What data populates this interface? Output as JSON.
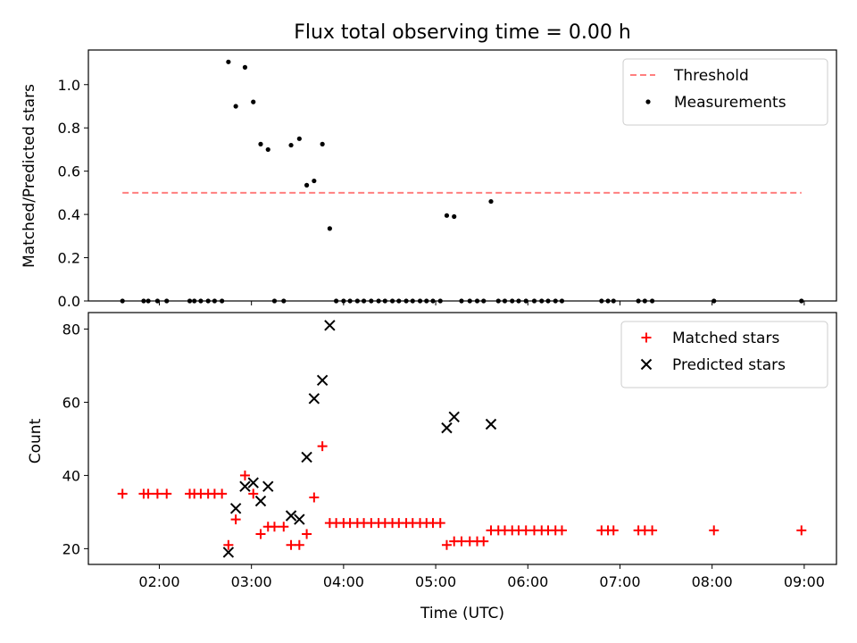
{
  "chart_data": [
    {
      "type": "scatter",
      "title": "Flux total observing time = 0.00 h",
      "xlabel": "",
      "ylabel": "Matched/Predicted stars",
      "ylim": [
        0,
        1.16
      ],
      "yticks": [
        0.0,
        0.2,
        0.4,
        0.6,
        0.8,
        1.0
      ],
      "ytick_labels": [
        "0.0",
        "0.2",
        "0.4",
        "0.6",
        "0.8",
        "1.0"
      ],
      "xlim_hours": [
        1.23,
        9.35
      ],
      "legend_position": "top-right",
      "threshold": {
        "name": "Threshold",
        "value": 0.5,
        "x_range_hours": [
          1.6,
          8.97
        ],
        "color": "#ff7f7f"
      },
      "series": [
        {
          "name": "Measurements",
          "color": "#000000",
          "marker": "dot",
          "points": [
            [
              1.6,
              0
            ],
            [
              1.83,
              0
            ],
            [
              1.88,
              0
            ],
            [
              1.98,
              0
            ],
            [
              2.08,
              0
            ],
            [
              2.33,
              0
            ],
            [
              2.38,
              0
            ],
            [
              2.45,
              0
            ],
            [
              2.53,
              0
            ],
            [
              2.6,
              0
            ],
            [
              2.68,
              0
            ],
            [
              2.75,
              1.105
            ],
            [
              2.83,
              0.9
            ],
            [
              2.93,
              1.08
            ],
            [
              3.02,
              0.92
            ],
            [
              3.1,
              0.725
            ],
            [
              3.18,
              0.7
            ],
            [
              3.25,
              0
            ],
            [
              3.35,
              0
            ],
            [
              3.43,
              0.72
            ],
            [
              3.52,
              0.75
            ],
            [
              3.6,
              0.535
            ],
            [
              3.68,
              0.555
            ],
            [
              3.77,
              0.725
            ],
            [
              3.85,
              0.335
            ],
            [
              3.92,
              0
            ],
            [
              4.0,
              0
            ],
            [
              4.07,
              0
            ],
            [
              4.15,
              0
            ],
            [
              4.22,
              0
            ],
            [
              4.3,
              0
            ],
            [
              4.38,
              0
            ],
            [
              4.45,
              0
            ],
            [
              4.53,
              0
            ],
            [
              4.6,
              0
            ],
            [
              4.68,
              0
            ],
            [
              4.75,
              0
            ],
            [
              4.83,
              0
            ],
            [
              4.9,
              0
            ],
            [
              4.97,
              0
            ],
            [
              5.05,
              0
            ],
            [
              5.12,
              0.395
            ],
            [
              5.2,
              0.39
            ],
            [
              5.28,
              0
            ],
            [
              5.37,
              0
            ],
            [
              5.45,
              0
            ],
            [
              5.52,
              0
            ],
            [
              5.6,
              0.46
            ],
            [
              5.68,
              0
            ],
            [
              5.75,
              0
            ],
            [
              5.83,
              0
            ],
            [
              5.9,
              0
            ],
            [
              5.98,
              0
            ],
            [
              6.07,
              0
            ],
            [
              6.15,
              0
            ],
            [
              6.22,
              0
            ],
            [
              6.3,
              0
            ],
            [
              6.37,
              0
            ],
            [
              6.8,
              0
            ],
            [
              6.87,
              0
            ],
            [
              6.93,
              0
            ],
            [
              7.2,
              0
            ],
            [
              7.27,
              0
            ],
            [
              7.35,
              0
            ],
            [
              8.02,
              0
            ],
            [
              8.97,
              0
            ]
          ]
        }
      ]
    },
    {
      "type": "scatter",
      "title": "",
      "xlabel": "Time (UTC)",
      "ylabel": "Count",
      "ylim": [
        15.7,
        84.5
      ],
      "yticks": [
        20,
        40,
        60,
        80
      ],
      "ytick_labels": [
        "20",
        "40",
        "60",
        "80"
      ],
      "xlim_hours": [
        1.23,
        9.35
      ],
      "xticks_hours": [
        2,
        3,
        4,
        5,
        6,
        7,
        8,
        9
      ],
      "xtick_labels": [
        "02:00",
        "03:00",
        "04:00",
        "05:00",
        "06:00",
        "07:00",
        "08:00",
        "09:00"
      ],
      "legend_position": "top-right",
      "series": [
        {
          "name": "Matched stars",
          "color": "#ff0000",
          "marker": "plus",
          "points": [
            [
              1.6,
              35
            ],
            [
              1.83,
              35
            ],
            [
              1.88,
              35
            ],
            [
              1.98,
              35
            ],
            [
              2.08,
              35
            ],
            [
              2.33,
              35
            ],
            [
              2.38,
              35
            ],
            [
              2.45,
              35
            ],
            [
              2.53,
              35
            ],
            [
              2.6,
              35
            ],
            [
              2.68,
              35
            ],
            [
              2.75,
              21
            ],
            [
              2.83,
              28
            ],
            [
              2.93,
              40
            ],
            [
              3.02,
              35
            ],
            [
              3.1,
              24
            ],
            [
              3.18,
              26
            ],
            [
              3.25,
              26
            ],
            [
              3.35,
              26
            ],
            [
              3.43,
              21
            ],
            [
              3.52,
              21
            ],
            [
              3.6,
              24
            ],
            [
              3.68,
              34
            ],
            [
              3.77,
              48
            ],
            [
              3.85,
              27
            ],
            [
              3.92,
              27
            ],
            [
              4.0,
              27
            ],
            [
              4.07,
              27
            ],
            [
              4.15,
              27
            ],
            [
              4.22,
              27
            ],
            [
              4.3,
              27
            ],
            [
              4.38,
              27
            ],
            [
              4.45,
              27
            ],
            [
              4.53,
              27
            ],
            [
              4.6,
              27
            ],
            [
              4.68,
              27
            ],
            [
              4.75,
              27
            ],
            [
              4.83,
              27
            ],
            [
              4.9,
              27
            ],
            [
              4.97,
              27
            ],
            [
              5.05,
              27
            ],
            [
              5.12,
              21
            ],
            [
              5.2,
              22
            ],
            [
              5.28,
              22
            ],
            [
              5.37,
              22
            ],
            [
              5.45,
              22
            ],
            [
              5.52,
              22
            ],
            [
              5.6,
              25
            ],
            [
              5.68,
              25
            ],
            [
              5.75,
              25
            ],
            [
              5.83,
              25
            ],
            [
              5.9,
              25
            ],
            [
              5.98,
              25
            ],
            [
              6.07,
              25
            ],
            [
              6.15,
              25
            ],
            [
              6.22,
              25
            ],
            [
              6.3,
              25
            ],
            [
              6.37,
              25
            ],
            [
              6.8,
              25
            ],
            [
              6.87,
              25
            ],
            [
              6.93,
              25
            ],
            [
              7.2,
              25
            ],
            [
              7.27,
              25
            ],
            [
              7.35,
              25
            ],
            [
              8.02,
              25
            ],
            [
              8.97,
              25
            ]
          ]
        },
        {
          "name": "Predicted stars",
          "color": "#000000",
          "marker": "x",
          "points": [
            [
              2.75,
              19
            ],
            [
              2.83,
              31
            ],
            [
              2.93,
              37
            ],
            [
              3.02,
              38
            ],
            [
              3.1,
              33
            ],
            [
              3.18,
              37
            ],
            [
              3.43,
              29
            ],
            [
              3.52,
              28
            ],
            [
              3.6,
              45
            ],
            [
              3.68,
              61
            ],
            [
              3.77,
              66
            ],
            [
              3.85,
              81
            ],
            [
              5.12,
              53
            ],
            [
              5.2,
              56
            ],
            [
              5.6,
              54
            ]
          ]
        }
      ]
    }
  ]
}
